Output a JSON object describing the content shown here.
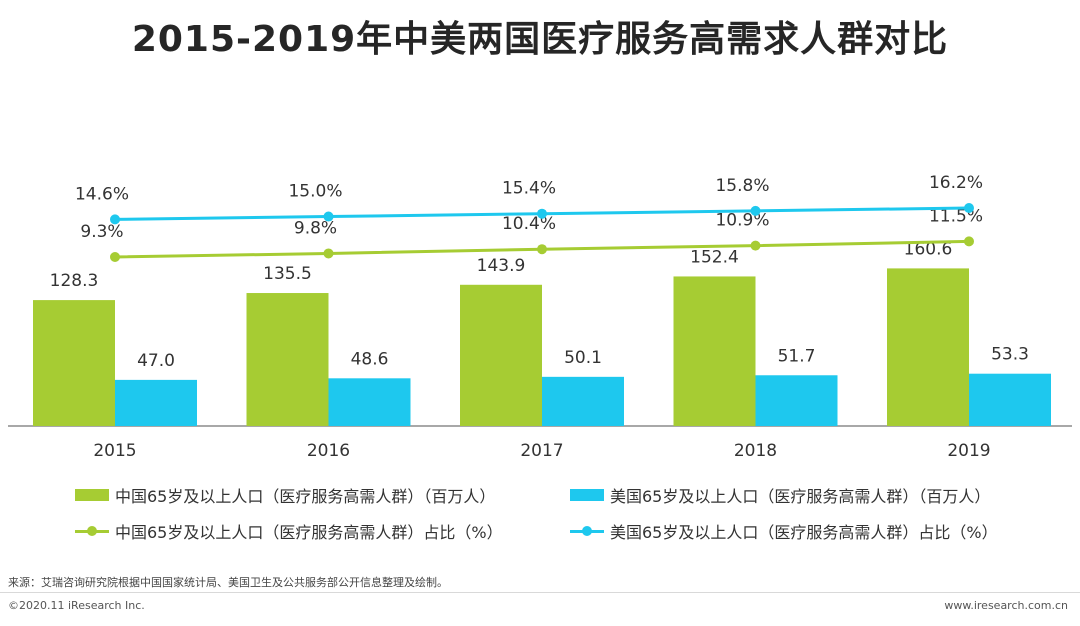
{
  "title": "2015-2019年中美两国医疗服务高需求人群对比",
  "legend": {
    "cn_bar": "中国65岁及以上人口（医疗服务高需人群）（百万人）",
    "us_bar": "美国65岁及以上人口（医疗服务高需人群）（百万人）",
    "cn_line": "中国65岁及以上人口（医疗服务高需人群）占比（%）",
    "us_line": "美国65岁及以上人口（医疗服务高需人群）占比（%）"
  },
  "source": "来源：艾瑞咨询研究院根据中国国家统计局、美国卫生及公共服务部公开信息整理及绘制。",
  "footer": {
    "left": "©2020.11 iResearch Inc.",
    "right": "www.iresearch.com.cn"
  },
  "colors": {
    "green": "#a6cc33",
    "blue": "#1ec8ee",
    "axis": "#8c8c8c"
  },
  "chart_data": {
    "type": "bar",
    "title": "2015-2019年中美两国医疗服务高需求人群对比",
    "categories": [
      "2015",
      "2016",
      "2017",
      "2018",
      "2019"
    ],
    "series": [
      {
        "name": "中国65岁及以上人口（医疗服务高需人群）（百万人）",
        "type": "bar",
        "values": [
          128.3,
          135.5,
          143.9,
          152.4,
          160.6
        ],
        "labels": [
          "128.3",
          "135.5",
          "143.9",
          "152.4",
          "160.6"
        ]
      },
      {
        "name": "美国65岁及以上人口（医疗服务高需人群）（百万人）",
        "type": "bar",
        "values": [
          47.0,
          48.6,
          50.1,
          51.7,
          53.3
        ],
        "labels": [
          "47.0",
          "48.6",
          "50.1",
          "51.7",
          "53.3"
        ]
      },
      {
        "name": "中国65岁及以上人口（医疗服务高需人群）占比（%）",
        "type": "line",
        "values": [
          9.3,
          9.8,
          10.4,
          10.9,
          11.5
        ],
        "labels": [
          "9.3%",
          "9.8%",
          "10.4%",
          "10.9%",
          "11.5%"
        ]
      },
      {
        "name": "美国65岁及以上人口（医疗服务高需人群）占比（%）",
        "type": "line",
        "values": [
          14.6,
          15.0,
          15.4,
          15.8,
          16.2
        ],
        "labels": [
          "14.6%",
          "15.0%",
          "15.4%",
          "15.8%",
          "16.2%"
        ]
      }
    ],
    "xlabel": "",
    "ylabel": "",
    "bar_ylim": [
      0,
      200
    ],
    "grid": false,
    "legend_position": "bottom"
  }
}
